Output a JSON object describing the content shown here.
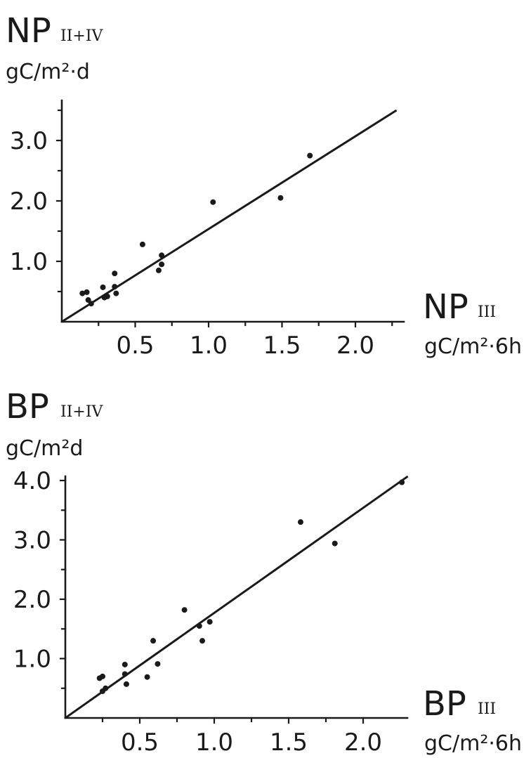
{
  "chart_data": [
    {
      "type": "scatter",
      "panel": "top",
      "y_axis_symbol": "NP",
      "y_axis_subscript": "II+IV",
      "y_axis_unit": "gC/m²·d",
      "x_axis_symbol": "NP",
      "x_axis_subscript": "III",
      "x_axis_unit": "gC/m²·6h",
      "xlim": [
        0,
        2.3
      ],
      "ylim": [
        0,
        3.6
      ],
      "x_ticks": [
        "0.5",
        "1.0",
        "1.5",
        "2.0"
      ],
      "x_tick_values": [
        0.5,
        1.0,
        1.5,
        2.0
      ],
      "y_ticks": [
        "1.0",
        "2.0",
        "3.0"
      ],
      "y_tick_values": [
        1.0,
        2.0,
        3.0
      ],
      "x_minor_ticks": [
        0.25,
        0.75,
        1.25,
        1.75,
        2.25
      ],
      "y_minor_ticks": [
        0.5,
        1.5,
        2.5,
        3.5
      ],
      "points": [
        {
          "x": 0.14,
          "y": 0.47
        },
        {
          "x": 0.17,
          "y": 0.49
        },
        {
          "x": 0.18,
          "y": 0.36
        },
        {
          "x": 0.2,
          "y": 0.3
        },
        {
          "x": 0.28,
          "y": 0.57
        },
        {
          "x": 0.29,
          "y": 0.4
        },
        {
          "x": 0.31,
          "y": 0.42
        },
        {
          "x": 0.36,
          "y": 0.8
        },
        {
          "x": 0.36,
          "y": 0.58
        },
        {
          "x": 0.37,
          "y": 0.47
        },
        {
          "x": 0.55,
          "y": 1.28
        },
        {
          "x": 0.66,
          "y": 0.85
        },
        {
          "x": 0.68,
          "y": 0.95
        },
        {
          "x": 0.68,
          "y": 1.1
        },
        {
          "x": 1.03,
          "y": 1.98
        },
        {
          "x": 1.49,
          "y": 2.05
        },
        {
          "x": 1.69,
          "y": 2.75
        }
      ],
      "fit_line": {
        "x": [
          0,
          2.28
        ],
        "y": [
          0,
          3.5
        ]
      }
    },
    {
      "type": "scatter",
      "panel": "bottom",
      "y_axis_symbol": "BP",
      "y_axis_subscript": "II+IV",
      "y_axis_unit": "gC/m²d",
      "x_axis_symbol": "BP",
      "x_axis_subscript": "III",
      "x_axis_unit": "gC/m²·6h",
      "xlim": [
        0,
        2.3
      ],
      "ylim": [
        0,
        4.0
      ],
      "x_ticks": [
        "0.5",
        "1.0",
        "1.5",
        "2.0"
      ],
      "x_tick_values": [
        0.5,
        1.0,
        1.5,
        2.0
      ],
      "y_ticks": [
        "1.0",
        "2.0",
        "3.0",
        "4.0"
      ],
      "y_tick_values": [
        1.0,
        2.0,
        3.0,
        4.0
      ],
      "x_minor_ticks": [
        0.25,
        0.75,
        1.25,
        1.75
      ],
      "y_minor_ticks": [
        0.5,
        1.5,
        2.5,
        3.5
      ],
      "points": [
        {
          "x": 0.23,
          "y": 0.67
        },
        {
          "x": 0.25,
          "y": 0.7
        },
        {
          "x": 0.25,
          "y": 0.45
        },
        {
          "x": 0.27,
          "y": 0.5
        },
        {
          "x": 0.4,
          "y": 0.9
        },
        {
          "x": 0.4,
          "y": 0.74
        },
        {
          "x": 0.41,
          "y": 0.57
        },
        {
          "x": 0.55,
          "y": 0.69
        },
        {
          "x": 0.59,
          "y": 1.3
        },
        {
          "x": 0.62,
          "y": 0.91
        },
        {
          "x": 0.8,
          "y": 1.82
        },
        {
          "x": 0.9,
          "y": 1.55
        },
        {
          "x": 0.92,
          "y": 1.3
        },
        {
          "x": 0.97,
          "y": 1.62
        },
        {
          "x": 1.58,
          "y": 3.3
        },
        {
          "x": 1.81,
          "y": 2.94
        },
        {
          "x": 2.26,
          "y": 3.97
        }
      ],
      "fit_line": {
        "x": [
          0,
          2.3
        ],
        "y": [
          0,
          4.07
        ]
      }
    }
  ]
}
